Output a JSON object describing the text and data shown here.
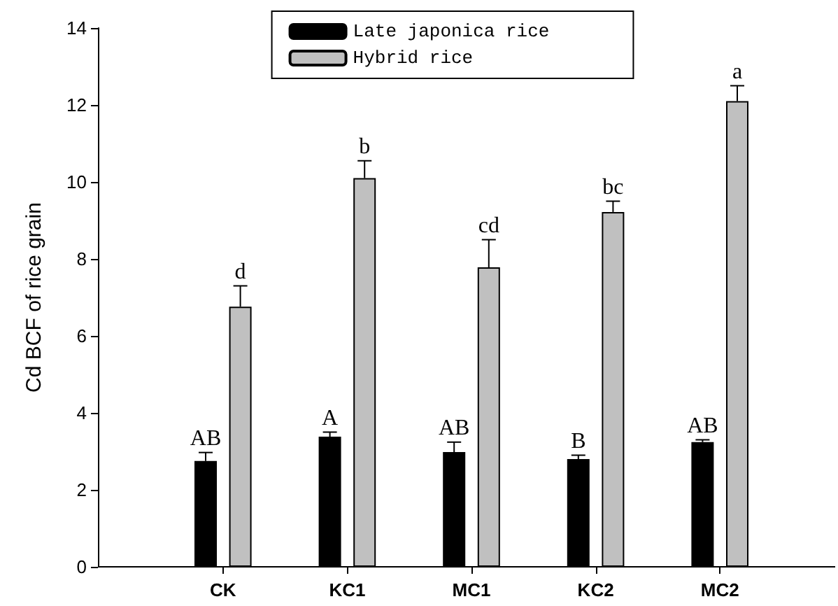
{
  "chart_data": {
    "type": "bar",
    "ylabel": "Cd BCF of rice grain",
    "categories": [
      "CK",
      "KC1",
      "MC1",
      "KC2",
      "MC2"
    ],
    "series": [
      {
        "name": "Late japonica rice",
        "color": "#000000",
        "values": [
          2.75,
          3.38,
          2.98,
          2.8,
          3.24
        ],
        "errors": [
          [
            2.75,
            2.97
          ],
          [
            3.38,
            3.5
          ],
          [
            2.98,
            3.24
          ],
          [
            2.8,
            2.9
          ],
          [
            3.24,
            3.3
          ]
        ]
      },
      {
        "name": "Hybrid rice",
        "color": "#c0c0c0",
        "values": [
          6.76,
          10.1,
          7.78,
          9.22,
          12.1
        ],
        "errors": [
          [
            6.76,
            7.3
          ],
          [
            10.1,
            10.55
          ],
          [
            7.78,
            8.5
          ],
          [
            9.22,
            9.5
          ],
          [
            12.1,
            12.5
          ]
        ]
      }
    ],
    "annotations": [
      {
        "text": "AB",
        "x": "CK",
        "y": 2.75
      },
      {
        "text": "d",
        "x": "CK",
        "y": 6.76
      },
      {
        "text": "A",
        "x": "KC1",
        "y": 3.38
      },
      {
        "text": "b",
        "x": "KC1",
        "y": 10.1
      },
      {
        "text": "AB",
        "x": "MC1",
        "y": 2.98
      },
      {
        "text": "cd",
        "x": "MC1",
        "y": 7.78
      },
      {
        "text": "B",
        "x": "KC2",
        "y": 2.8
      },
      {
        "text": "bc",
        "x": "KC2",
        "y": 9.22
      },
      {
        "text": "AB",
        "x": "MC2",
        "y": 3.24
      },
      {
        "text": "a",
        "x": "MC2",
        "y": 12.1
      }
    ],
    "ylim": [
      0,
      14
    ],
    "yticks": [
      0,
      2,
      4,
      6,
      8,
      10,
      12,
      14
    ],
    "grid": false,
    "legend": "top"
  }
}
